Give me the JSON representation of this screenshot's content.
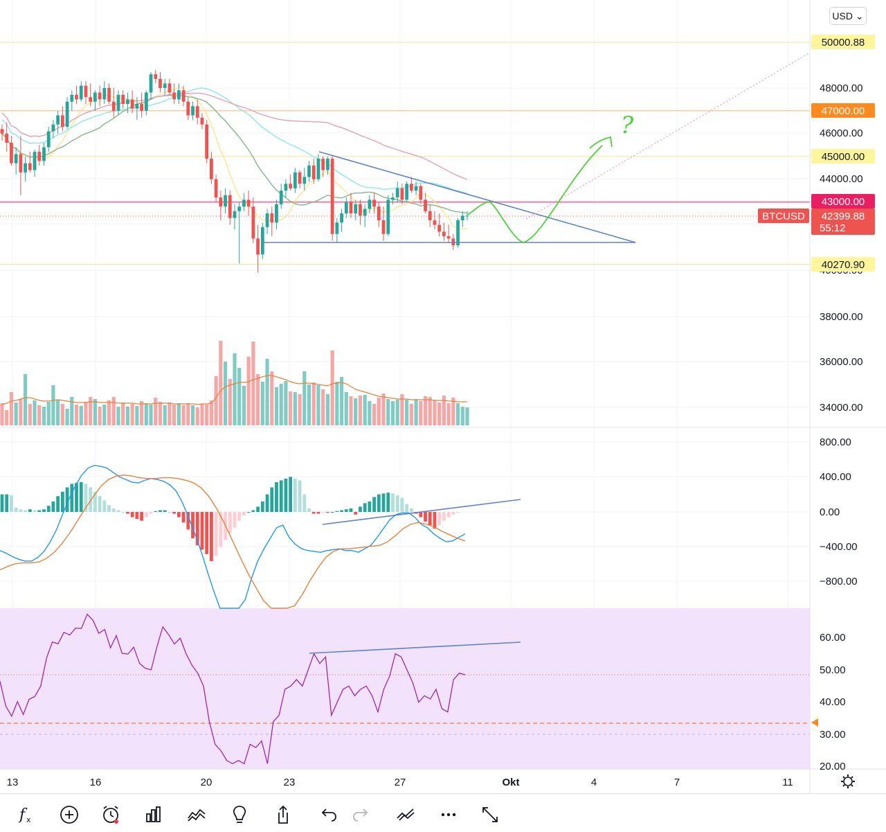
{
  "header": {
    "currency_label": "USD"
  },
  "price_axis": {
    "labels": [
      "48000.00",
      "46000.00",
      "44000.00",
      "40000.00",
      "38000.00",
      "36000.00",
      "34000.00"
    ],
    "tags": [
      {
        "text": "50000.88",
        "bg": "#fff59d",
        "fg": "#131722"
      },
      {
        "text": "47000.00",
        "bg": "#ff8a1f",
        "fg": "#ffffff"
      },
      {
        "text": "45000.00",
        "bg": "#fff59d",
        "fg": "#131722"
      },
      {
        "text": "43000.00",
        "bg": "#e91e63",
        "fg": "#ffffff"
      },
      {
        "text": "40270.90",
        "bg": "#fff59d",
        "fg": "#131722"
      }
    ],
    "symbol": "BTCUSD",
    "last_price": "42399.88",
    "countdown": "55:12"
  },
  "macd_axis": {
    "labels": [
      "800.00",
      "400.00",
      "0.00",
      "−400.00",
      "−800.00"
    ]
  },
  "rsi_axis": {
    "labels": [
      "60.00",
      "50.00",
      "40.00",
      "30.00",
      "20.00"
    ]
  },
  "time_axis": {
    "labels": [
      "13",
      "16",
      "20",
      "23",
      "27",
      "Okt",
      "4",
      "7",
      "11"
    ]
  },
  "annotation": {
    "question_mark": "?"
  },
  "toolbar": {
    "items": [
      "indicators",
      "add",
      "alert",
      "bar-style",
      "compare",
      "idea",
      "share",
      "undo",
      "redo",
      "drawings",
      "more",
      "fullscreen"
    ]
  },
  "colors": {
    "up": "#26a69a",
    "down": "#ef5350",
    "vol_up": "#80cbc4",
    "vol_down": "#f4a7a5",
    "ma_yellow": "#fde68a",
    "ma_green": "#81b88a",
    "ma_cyan": "#8de6ec",
    "ma_pink": "#e6a0b6",
    "trend_blue": "#5b83c9",
    "forecast_green": "#4cd137",
    "macd": "#2196f3",
    "signal": "#e8813a",
    "rsi": "#9c27b0",
    "rsi_band": "#f3e2fc"
  },
  "chart_data": [
    {
      "type": "candlestick",
      "symbol": "BTCUSD",
      "x_labels": [
        "13",
        "16",
        "20",
        "23",
        "27",
        "Okt",
        "4",
        "7",
        "11"
      ],
      "y_range": [
        33400,
        51000
      ],
      "last_price": 42399.88,
      "horizontal_levels": [
        50000.88,
        47000,
        45000,
        43000,
        40270.9
      ],
      "candles_ohlc": [
        [
          46200,
          46400,
          45700,
          46000
        ],
        [
          46000,
          46500,
          45200,
          45600
        ],
        [
          45600,
          45900,
          44600,
          44700
        ],
        [
          44700,
          45400,
          44200,
          45100
        ],
        [
          45100,
          45900,
          43300,
          44300
        ],
        [
          44300,
          45000,
          43900,
          44700
        ],
        [
          44700,
          45200,
          44300,
          44400
        ],
        [
          44400,
          45300,
          44100,
          45200
        ],
        [
          45200,
          45500,
          44600,
          44800
        ],
        [
          44800,
          45600,
          44600,
          45400
        ],
        [
          45400,
          46300,
          45200,
          46100
        ],
        [
          46100,
          46600,
          45800,
          46400
        ],
        [
          46400,
          47000,
          46000,
          46800
        ],
        [
          46800,
          47200,
          46100,
          46300
        ],
        [
          46300,
          47600,
          46200,
          47400
        ],
        [
          47400,
          47900,
          47000,
          47700
        ],
        [
          47700,
          48100,
          47300,
          47500
        ],
        [
          47500,
          48300,
          47400,
          48100
        ],
        [
          48100,
          48300,
          47300,
          47600
        ],
        [
          47600,
          48200,
          47200,
          47400
        ],
        [
          47400,
          47900,
          47000,
          47800
        ],
        [
          47800,
          48100,
          47200,
          47500
        ],
        [
          47500,
          48300,
          47300,
          48000
        ],
        [
          48000,
          48200,
          47300,
          47400
        ],
        [
          47400,
          48000,
          46700,
          47000
        ],
        [
          47000,
          47900,
          46800,
          47700
        ],
        [
          47700,
          47900,
          47100,
          47300
        ],
        [
          47300,
          47800,
          46900,
          47500
        ],
        [
          47500,
          47900,
          46900,
          47100
        ],
        [
          47100,
          47600,
          46600,
          47300
        ],
        [
          47300,
          47800,
          46700,
          47000
        ],
        [
          47000,
          47900,
          46800,
          47800
        ],
        [
          47800,
          48700,
          47500,
          48600
        ],
        [
          48600,
          48800,
          48200,
          48400
        ],
        [
          48400,
          48700,
          47800,
          48000
        ],
        [
          48000,
          48400,
          47700,
          48200
        ],
        [
          48200,
          48400,
          47700,
          47800
        ],
        [
          47800,
          48200,
          47300,
          47500
        ],
        [
          47500,
          48200,
          47300,
          47900
        ],
        [
          47900,
          48100,
          47200,
          47400
        ],
        [
          47400,
          47600,
          46600,
          46800
        ],
        [
          46800,
          47400,
          46600,
          47200
        ],
        [
          47200,
          47500,
          46400,
          46700
        ],
        [
          46700,
          46900,
          46200,
          46400
        ],
        [
          46400,
          46600,
          44700,
          44900
        ],
        [
          44900,
          45200,
          43800,
          44000
        ],
        [
          44000,
          44200,
          43000,
          43200
        ],
        [
          43200,
          43500,
          42200,
          42800
        ],
        [
          42800,
          43600,
          42500,
          43300
        ],
        [
          43300,
          43500,
          42000,
          42300
        ],
        [
          42300,
          42900,
          41800,
          42600
        ],
        [
          42600,
          43000,
          40300,
          42800
        ],
        [
          42800,
          43400,
          42600,
          43100
        ],
        [
          43100,
          43500,
          42400,
          42800
        ],
        [
          42800,
          43200,
          41200,
          41400
        ],
        [
          41400,
          42000,
          39900,
          40700
        ],
        [
          40700,
          42100,
          40500,
          41900
        ],
        [
          41900,
          42700,
          41600,
          42500
        ],
        [
          42500,
          42800,
          41500,
          42100
        ],
        [
          42100,
          43100,
          41800,
          42900
        ],
        [
          42900,
          43800,
          42700,
          43500
        ],
        [
          43500,
          44000,
          43200,
          43800
        ],
        [
          43800,
          44200,
          43500,
          43600
        ],
        [
          43600,
          44500,
          43400,
          44300
        ],
        [
          44300,
          44400,
          43600,
          43800
        ],
        [
          43800,
          44500,
          43500,
          44100
        ],
        [
          44100,
          44800,
          43900,
          44600
        ],
        [
          44600,
          44900,
          43800,
          44000
        ],
        [
          44000,
          45100,
          43900,
          44900
        ],
        [
          44900,
          45000,
          44100,
          44400
        ],
        [
          44400,
          45000,
          44200,
          44900
        ],
        [
          44900,
          45000,
          41300,
          41600
        ],
        [
          41600,
          42300,
          41200,
          42100
        ],
        [
          42100,
          42700,
          41700,
          42500
        ],
        [
          42500,
          43200,
          42300,
          43000
        ],
        [
          43000,
          43400,
          42300,
          42500
        ],
        [
          42500,
          43100,
          42200,
          42900
        ],
        [
          42900,
          43100,
          42000,
          42400
        ],
        [
          42400,
          42900,
          41900,
          42700
        ],
        [
          42700,
          43300,
          42500,
          43100
        ],
        [
          43100,
          43400,
          42500,
          42800
        ],
        [
          42800,
          43000,
          41900,
          42200
        ],
        [
          42200,
          42800,
          41300,
          41600
        ],
        [
          41600,
          43300,
          41500,
          43100
        ],
        [
          43100,
          43400,
          42900,
          43200
        ],
        [
          43200,
          43900,
          43000,
          43600
        ],
        [
          43600,
          43800,
          42900,
          43100
        ],
        [
          43100,
          43900,
          43000,
          43800
        ],
        [
          43800,
          44100,
          43400,
          43500
        ],
        [
          43500,
          43900,
          43300,
          43700
        ],
        [
          43700,
          43800,
          42900,
          43100
        ],
        [
          43100,
          43400,
          42500,
          42600
        ],
        [
          42600,
          42900,
          41900,
          42200
        ],
        [
          42200,
          42600,
          41800,
          42000
        ],
        [
          42000,
          42500,
          41500,
          41700
        ],
        [
          41700,
          42100,
          41300,
          41500
        ],
        [
          41500,
          42000,
          41200,
          41400
        ],
        [
          41400,
          41600,
          40900,
          41100
        ],
        [
          41100,
          42300,
          41000,
          42200
        ],
        [
          42200,
          42600,
          41900,
          42400
        ],
        [
          42400,
          42600,
          42200,
          42400
        ]
      ],
      "volume": [
        32,
        22,
        48,
        33,
        38,
        74,
        31,
        36,
        29,
        27,
        34,
        58,
        37,
        31,
        24,
        41,
        30,
        28,
        34,
        41,
        38,
        27,
        30,
        36,
        41,
        27,
        33,
        27,
        31,
        28,
        35,
        32,
        30,
        40,
        34,
        29,
        33,
        30,
        32,
        29,
        32,
        29,
        26,
        31,
        30,
        36,
        71,
        122,
        92,
        67,
        104,
        83,
        57,
        99,
        121,
        74,
        63,
        96,
        78,
        55,
        60,
        64,
        49,
        48,
        45,
        78,
        59,
        62,
        58,
        52,
        45,
        108,
        63,
        70,
        48,
        42,
        39,
        43,
        44,
        35,
        31,
        40,
        46,
        38,
        35,
        37,
        45,
        37,
        31,
        38,
        35,
        42,
        41,
        36,
        33,
        43,
        32,
        40,
        32,
        27,
        26
      ],
      "volume_ma_points": [
        30,
        32,
        35,
        36,
        38,
        40,
        40,
        38,
        36,
        35,
        35,
        36,
        37,
        36,
        35,
        34,
        33,
        33,
        33,
        34,
        34,
        33,
        33,
        33,
        33,
        32,
        32,
        32,
        32,
        31,
        31,
        31,
        31,
        32,
        32,
        32,
        32,
        31,
        31,
        31,
        31,
        31,
        30,
        31,
        31,
        32,
        40,
        50,
        56,
        58,
        60,
        62,
        62,
        63,
        66,
        68,
        70,
        72,
        72,
        70,
        68,
        66,
        63,
        61,
        60,
        61,
        61,
        60,
        59,
        58,
        57,
        60,
        61,
        62,
        60,
        56,
        52,
        50,
        48,
        46,
        44,
        42,
        41,
        40,
        39,
        38,
        38,
        38,
        37,
        37,
        37,
        37,
        37,
        36,
        36,
        36,
        35,
        35,
        34,
        34,
        34
      ]
    },
    {
      "type": "macd",
      "y_range": [
        -1000,
        800
      ],
      "ticks": [
        800,
        400,
        0,
        -400,
        -800
      ],
      "histogram": [
        200,
        200,
        190,
        50,
        30,
        20,
        30,
        20,
        20,
        30,
        70,
        120,
        180,
        230,
        280,
        320,
        330,
        340,
        320,
        280,
        230,
        180,
        130,
        80,
        40,
        20,
        0,
        -20,
        -60,
        -80,
        -100,
        -60,
        -20,
        10,
        20,
        20,
        0,
        -20,
        -60,
        -120,
        -200,
        -300,
        -380,
        -430,
        -480,
        -560,
        -500,
        -400,
        -320,
        -240,
        -180,
        -100,
        -40,
        0,
        20,
        60,
        120,
        200,
        280,
        340,
        360,
        380,
        400,
        380,
        360,
        200,
        40,
        -20,
        -20,
        -10,
        -10,
        0,
        10,
        20,
        30,
        40,
        -30,
        60,
        100,
        120,
        170,
        200,
        210,
        220,
        210,
        190,
        160,
        90,
        40,
        -20,
        -60,
        -110,
        -150,
        -190,
        -150,
        -100,
        -60,
        -30,
        -10
      ],
      "macd_line": [
        -440,
        -470,
        -510,
        -540,
        -560,
        -560,
        -520,
        -450,
        -340,
        -200,
        -20,
        150,
        300,
        420,
        500,
        530,
        520,
        500,
        450,
        400,
        370,
        340,
        330,
        360,
        380,
        370,
        350,
        310,
        240,
        110,
        -60,
        -250,
        -450,
        -680,
        -900,
        -1100,
        -1250,
        -1300,
        -1230,
        -1000,
        -760,
        -560,
        -420,
        -300,
        -180,
        -150,
        -290,
        -370,
        -420,
        -440,
        -450,
        -460,
        -440,
        -430,
        -420,
        -440,
        -440,
        -460,
        -420,
        -380,
        -290,
        -190,
        -90,
        -30,
        -10,
        -10,
        -60,
        -140,
        -180,
        -250,
        -300,
        -340,
        -330,
        -290,
        -250
      ],
      "signal_line": [
        -660,
        -620,
        -590,
        -580,
        -580,
        -570,
        -530,
        -460,
        -360,
        -240,
        -100,
        40,
        170,
        290,
        370,
        410,
        420,
        410,
        390,
        380,
        380,
        390,
        390,
        380,
        360,
        330,
        270,
        170,
        30,
        -140,
        -330,
        -520,
        -700,
        -860,
        -1010,
        -1100,
        -1150,
        -1140,
        -1070,
        -940,
        -780,
        -640,
        -520,
        -450,
        -420,
        -420,
        -410,
        -400,
        -390,
        -380,
        -340,
        -270,
        -190,
        -140,
        -120,
        -140,
        -170,
        -220,
        -260,
        -300,
        -330
      ]
    },
    {
      "type": "line",
      "name": "RSI",
      "y_range": [
        19,
        70
      ],
      "ticks": [
        60,
        50,
        40,
        30,
        20
      ],
      "band": [
        30,
        70
      ],
      "levels": [
        33.5,
        48.5
      ],
      "values": [
        46.5,
        38.8,
        35.7,
        40.2,
        36.2,
        40.9,
        41.8,
        45.0,
        53.6,
        58.6,
        58.1,
        61.6,
        60.8,
        62.9,
        62.8,
        67.2,
        65.3,
        61.3,
        62.5,
        56.8,
        60.6,
        55.1,
        54.9,
        57.0,
        52.0,
        50.5,
        50.0,
        57.2,
        63.3,
        60.9,
        58.0,
        59.8,
        55.0,
        51.5,
        49.0,
        45.0,
        34.0,
        27.0,
        25.0,
        22.0,
        21.0,
        22.0,
        21.0,
        27.0,
        26.0,
        28.0,
        21.0,
        34.0,
        36.0,
        44.0,
        45.0,
        47.0,
        45.0,
        50.0,
        55.0,
        52.0,
        54.0,
        36.0,
        40.0,
        44.0,
        45.0,
        42.0,
        44.0,
        45.0,
        42.0,
        37.0,
        44.0,
        48.0,
        55.0,
        54.0,
        50.0,
        46.0,
        40.0,
        42.0,
        41.0,
        44.0,
        38.0,
        37.0,
        47.0,
        49.0,
        48.5
      ]
    }
  ]
}
